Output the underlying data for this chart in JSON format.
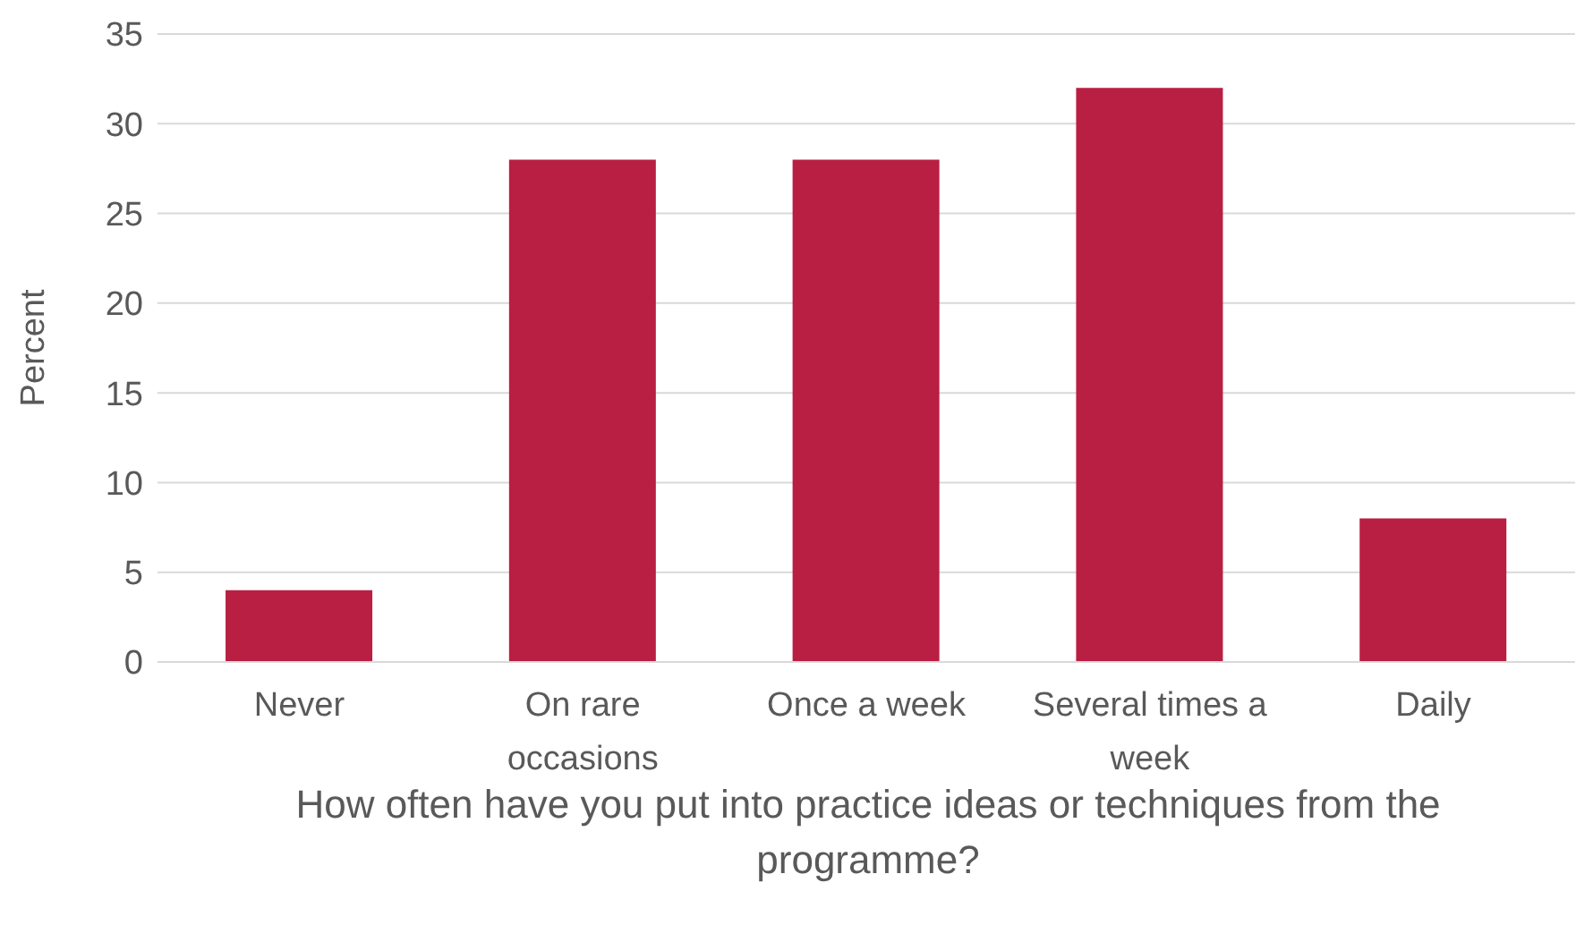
{
  "chart_data": {
    "type": "bar",
    "xlabel": "How often have you put into practice ideas or techniques from the programme?",
    "ylabel": "Percent",
    "categories": [
      "Never",
      "On rare occasions",
      "Once a week",
      "Several times a week",
      "Daily"
    ],
    "values": [
      4,
      28,
      28,
      32,
      8
    ],
    "color": "#b81f42",
    "ylim": [
      0,
      35
    ],
    "yticks": [
      0,
      5,
      10,
      15,
      20,
      25,
      30,
      35
    ],
    "grid": "y",
    "legend": false
  }
}
